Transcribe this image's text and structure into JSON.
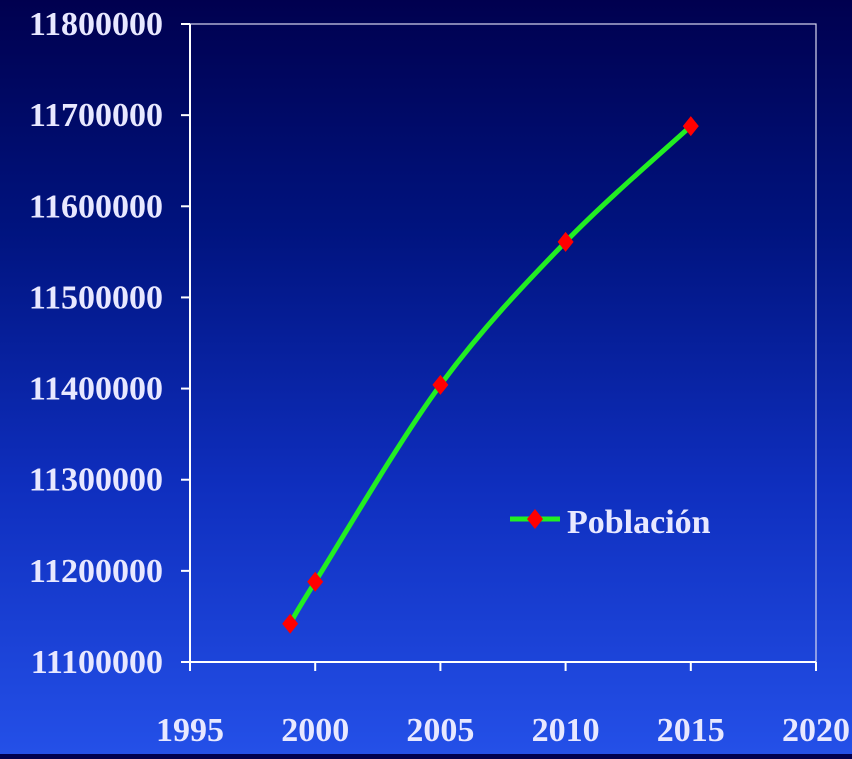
{
  "chart_data": {
    "type": "line",
    "title": "",
    "xlabel": "",
    "ylabel": "",
    "xlim": [
      1995,
      2020
    ],
    "ylim": [
      11100000,
      11800000
    ],
    "x_ticks": [
      1995,
      2000,
      2005,
      2010,
      2015,
      2020
    ],
    "y_ticks": [
      11100000,
      11200000,
      11300000,
      11400000,
      11500000,
      11600000,
      11700000,
      11800000
    ],
    "x_tick_labels": [
      "1995",
      "2000",
      "2005",
      "2010",
      "2015",
      "2020"
    ],
    "y_tick_labels": [
      "11100000",
      "11200000",
      "11300000",
      "11400000",
      "11500000",
      "11600000",
      "11700000",
      "11800000"
    ],
    "grid": false,
    "legend_position": "center-right",
    "series": [
      {
        "name": "Población",
        "color": "#22ee22",
        "marker": "diamond",
        "marker_color": "#ff0000",
        "x": [
          1999,
          2000,
          2005,
          2010,
          2015
        ],
        "values": [
          11142000,
          11188000,
          11404000,
          11561000,
          11688000
        ]
      }
    ]
  }
}
